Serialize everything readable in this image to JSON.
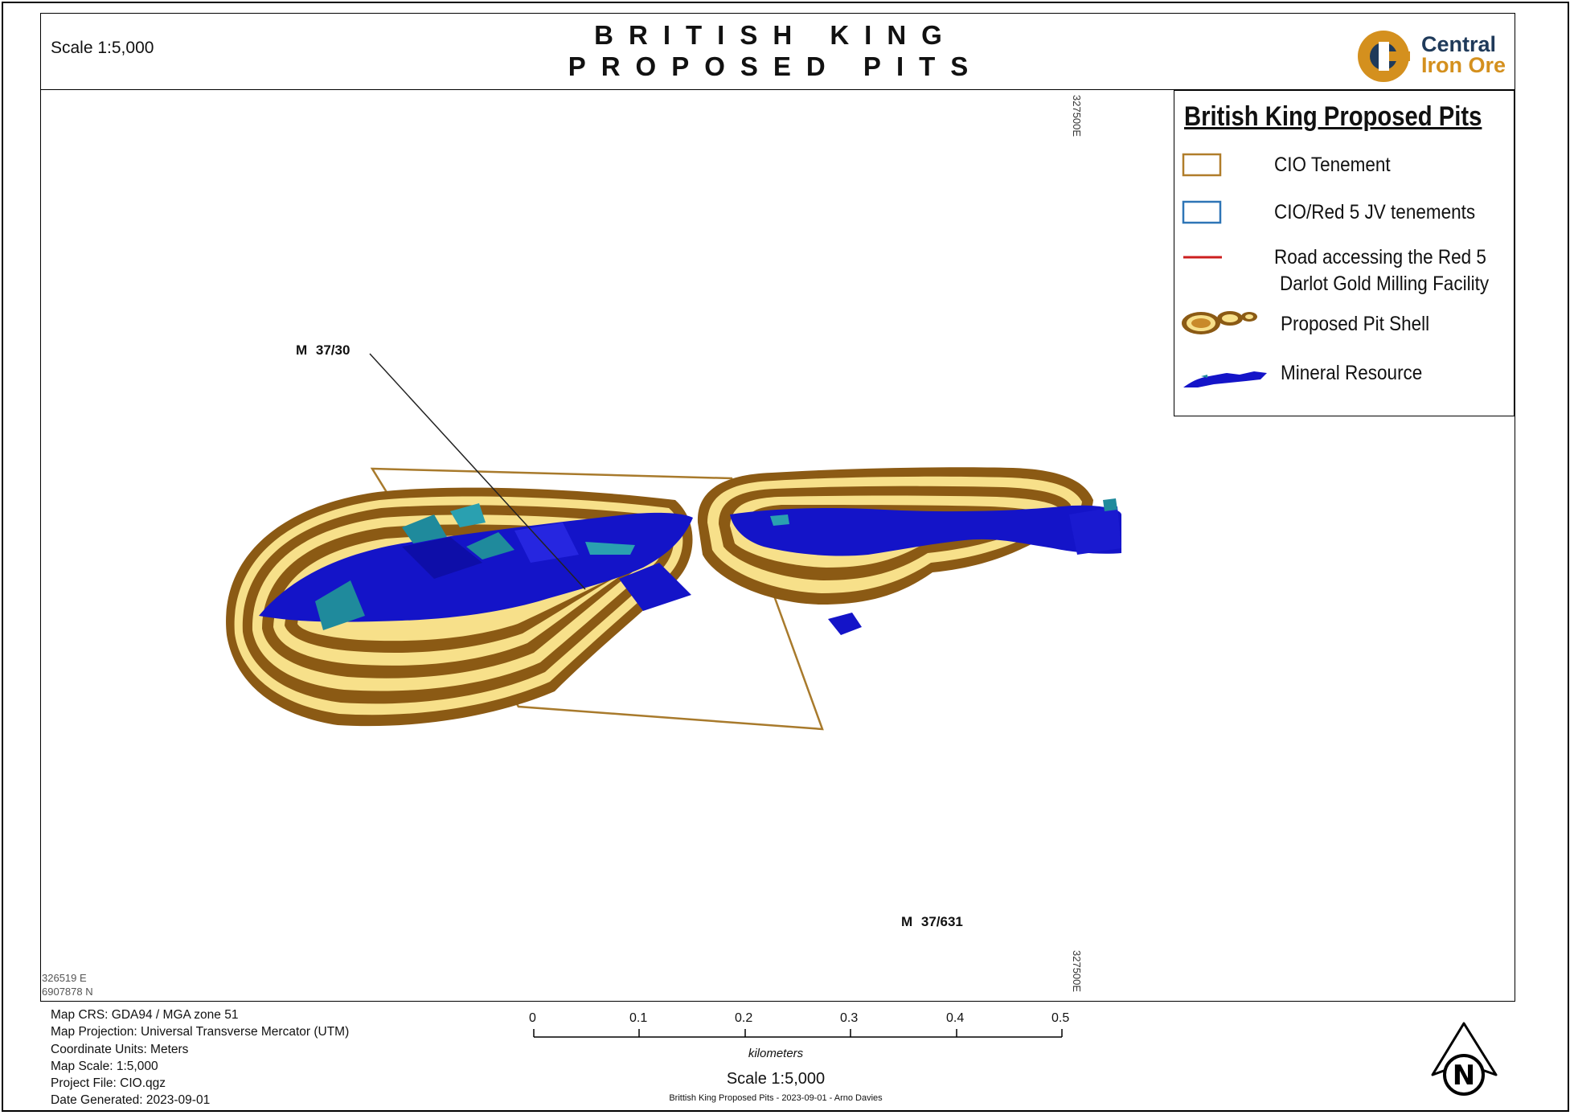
{
  "header": {
    "scale_label": "Scale 1:5,000",
    "title_line1": "BRITISH KING",
    "title_line2": "PROPOSED PITS",
    "logo": {
      "line1": "Central",
      "line2": "Iron Ore",
      "primary_color": "#1f3a5a",
      "accent_color": "#d4901e",
      "icon": "cio-logo-icon"
    }
  },
  "legend": {
    "title": "British King Proposed Pits",
    "items": [
      {
        "label": "CIO Tenement",
        "symbol": "tenement-box-icon",
        "color": "#b07d2a"
      },
      {
        "label": "CIO/Red 5 JV tenements",
        "symbol": "jv-tenement-box-icon",
        "color": "#2e75b6"
      },
      {
        "label_line1": "Road accessing the Red 5",
        "label_line2": "Darlot Gold Milling Facility",
        "symbol": "road-line-icon",
        "color": "#cc1f1f"
      },
      {
        "label": "Proposed Pit Shell",
        "symbol": "pit-shell-icon",
        "color": "#c98a2a"
      },
      {
        "label": "Mineral Resource",
        "symbol": "mineral-resource-icon",
        "color": "#1414c8"
      }
    ]
  },
  "map": {
    "coord_top": "327500E",
    "coord_bottom": "327500E",
    "corner_easting": "326519 E",
    "corner_northing": "6907878 N",
    "tenement_labels": [
      "M  37/30",
      "M  37/631"
    ],
    "colors": {
      "pit_dark": "#8b5a14",
      "pit_light": "#f7e08a",
      "resource": "#1414c8",
      "teal": "#1f8a9c",
      "tenement_outline": "#a87a2c"
    }
  },
  "info": {
    "lines": [
      "Map CRS:  GDA94 / MGA zone 51",
      "Map Projection:  Universal Transverse Mercator (UTM)",
      "Coordinate Units:  Meters",
      "Map Scale:  1:5,000",
      "Project File:  CIO.qgz",
      "Date Generated:  2023-09-01"
    ]
  },
  "scalebar": {
    "ticks": [
      "0",
      "0.1",
      "0.2",
      "0.3",
      "0.4",
      "0.5"
    ],
    "units": "kilometers",
    "scale_label": "Scale 1:5,000",
    "credits": "Brittish King Proposed Pits - 2023-09-01 - Arno Davies"
  },
  "north_arrow": {
    "letter": "N",
    "icon": "north-arrow-icon"
  }
}
